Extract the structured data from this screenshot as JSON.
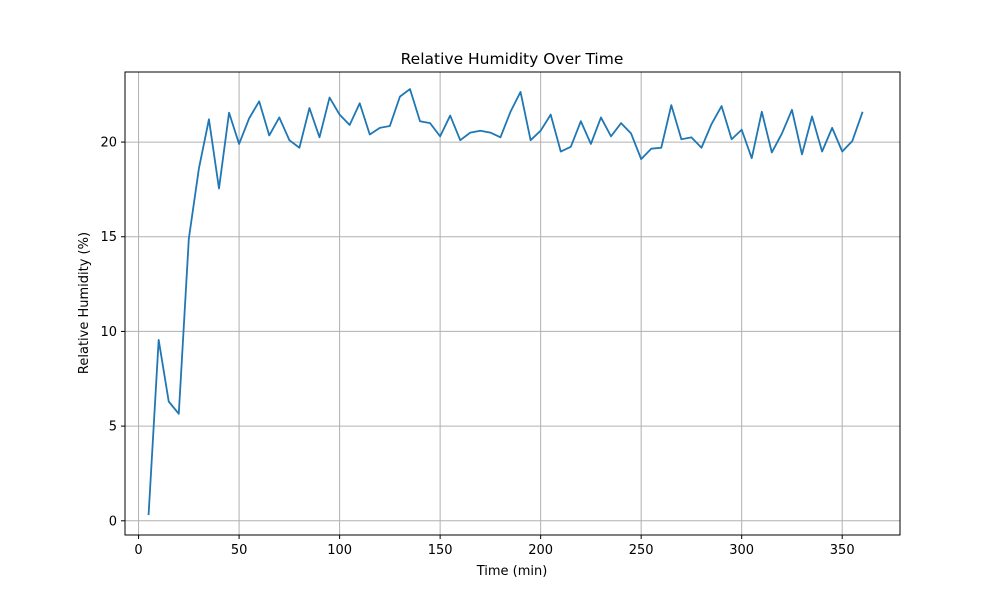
{
  "chart_data": {
    "type": "line",
    "title": "Relative Humidity Over Time",
    "xlabel": "Time (min)",
    "ylabel": "Relative Humidity (%)",
    "xlim": [
      -6.75,
      378.75
    ],
    "ylim": [
      -0.75,
      23.7
    ],
    "xticks": [
      0,
      50,
      100,
      150,
      200,
      250,
      300,
      350
    ],
    "yticks": [
      0,
      5,
      10,
      15,
      20
    ],
    "grid": true,
    "color": "#1f77b4",
    "x": [
      5,
      10,
      15,
      20,
      25,
      30,
      35,
      40,
      45,
      50,
      55,
      60,
      65,
      70,
      75,
      80,
      85,
      90,
      95,
      100,
      105,
      110,
      115,
      120,
      125,
      130,
      135,
      140,
      145,
      150,
      155,
      160,
      165,
      170,
      175,
      180,
      185,
      190,
      195,
      200,
      205,
      210,
      215,
      220,
      225,
      230,
      235,
      240,
      245,
      250,
      255,
      260,
      265,
      270,
      275,
      280,
      285,
      290,
      295,
      300,
      305,
      310,
      315,
      320,
      325,
      330,
      335,
      340,
      345,
      350,
      355,
      360
    ],
    "y": [
      0.35,
      9.55,
      6.3,
      5.65,
      14.9,
      18.6,
      21.2,
      17.55,
      21.55,
      19.9,
      21.25,
      22.15,
      20.35,
      21.3,
      20.1,
      19.7,
      21.8,
      20.25,
      22.35,
      21.45,
      20.9,
      22.05,
      20.4,
      20.75,
      20.85,
      22.4,
      22.8,
      21.1,
      21.0,
      20.3,
      21.4,
      20.1,
      20.5,
      20.6,
      20.5,
      20.25,
      21.6,
      22.65,
      20.1,
      20.6,
      21.45,
      19.5,
      19.75,
      21.1,
      19.9,
      21.3,
      20.3,
      21.0,
      20.45,
      19.1,
      19.65,
      19.7,
      21.95,
      20.15,
      20.25,
      19.7,
      20.95,
      21.9,
      20.15,
      20.65,
      19.15,
      21.6,
      19.45,
      20.45,
      21.7,
      19.35,
      21.35,
      19.5,
      20.75,
      19.5,
      20.05,
      21.55
    ]
  }
}
